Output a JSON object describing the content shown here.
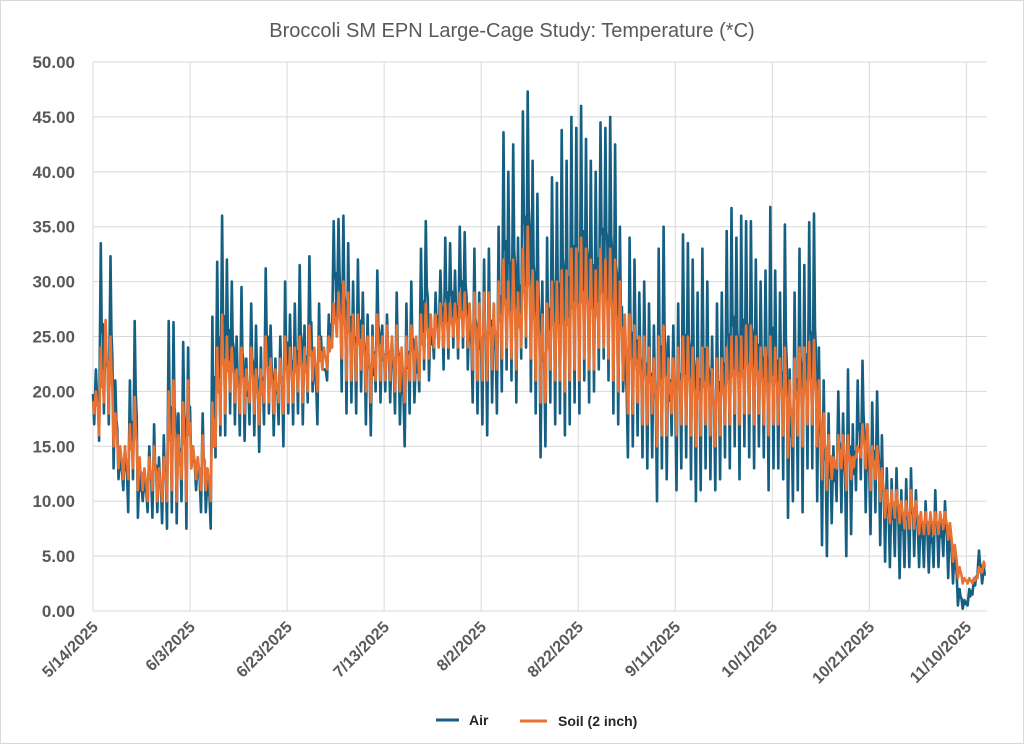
{
  "chart_data": {
    "type": "line",
    "title": "Broccoli SM EPN Large-Cage Study: Temperature (*C)",
    "xlabel": "",
    "ylabel": "",
    "ylim": [
      0,
      50
    ],
    "yticks": [
      "0.00",
      "5.00",
      "10.00",
      "15.00",
      "20.00",
      "25.00",
      "30.00",
      "35.00",
      "40.00",
      "45.00",
      "50.00"
    ],
    "ytick_values": [
      0,
      5,
      10,
      15,
      20,
      25,
      30,
      35,
      40,
      45,
      50
    ],
    "xticks": [
      "5/14/2025",
      "6/3/2025",
      "6/23/2025",
      "7/13/2025",
      "8/2/2025",
      "8/22/2025",
      "9/11/2025",
      "10/1/2025",
      "10/21/2025",
      "11/10/2025"
    ],
    "xtick_days": [
      0,
      20,
      40,
      60,
      80,
      100,
      120,
      140,
      160,
      180
    ],
    "x_start_date": "5/14/2025",
    "x_range_days": [
      0,
      184
    ],
    "grid": true,
    "legend_position": "bottom",
    "note": "Values are daily max/min, one per day starting 5/14/2025",
    "series": [
      {
        "name": "Air",
        "color": "#156082",
        "daily_max": [
          22,
          33.5,
          26,
          32.3,
          21,
          14,
          15,
          21,
          26.4,
          13,
          12,
          15,
          17,
          14,
          16,
          26.4,
          26.3,
          18,
          24.5,
          24,
          15,
          14,
          18,
          12,
          26.8,
          31.8,
          36,
          32,
          30,
          25,
          29.5,
          23,
          28,
          26,
          24,
          31.2,
          26,
          23,
          25,
          30,
          27,
          28,
          31.5,
          26,
          32.3,
          23,
          28,
          22,
          27,
          35.5,
          35.7,
          36,
          33.5,
          30,
          32,
          29,
          27,
          26,
          31,
          26,
          27,
          25,
          29,
          23,
          28,
          30,
          24,
          33,
          35.5,
          27,
          29,
          31,
          34,
          33.5,
          31,
          35,
          34.5,
          28,
          33,
          29,
          32,
          33,
          28,
          35,
          43.6,
          40,
          42.5,
          34,
          45.5,
          47.3,
          41,
          38,
          30,
          34,
          39.5,
          39,
          43.8,
          41,
          45,
          44,
          46,
          43,
          41,
          40,
          44.5,
          44,
          45,
          42.5,
          35,
          24,
          34,
          32,
          29,
          30,
          28,
          26,
          33,
          35,
          25,
          26,
          28,
          34.3,
          33.5,
          32,
          29,
          33,
          30,
          25,
          28,
          29,
          34.6,
          36.7,
          34,
          36,
          35.5,
          35.5,
          32,
          30,
          31,
          36.8,
          31,
          29,
          35.2,
          22,
          29,
          33,
          31.5,
          35.4,
          36.2,
          24,
          21,
          18,
          15,
          20,
          18,
          22,
          17,
          21,
          22.8,
          17,
          19,
          20,
          16,
          13,
          12,
          13,
          11,
          12,
          13,
          11,
          9,
          10,
          8.5,
          11,
          9,
          10,
          8,
          6,
          2,
          1,
          2,
          3,
          5.5,
          4,
          4
        ],
        "daily_min": [
          17,
          15.5,
          18,
          17,
          13,
          12,
          11,
          9,
          12,
          8.5,
          10,
          9,
          8.5,
          9,
          8,
          7.5,
          9,
          8,
          10,
          7.5,
          13,
          11,
          9,
          9,
          7.5,
          14,
          16,
          16,
          18,
          17,
          16,
          15.5,
          17,
          16,
          14.5,
          17,
          18,
          16,
          17,
          15,
          18,
          17,
          18,
          17,
          19,
          20,
          17,
          22,
          21,
          24,
          25,
          20,
          18,
          19,
          18,
          20,
          17,
          16,
          20,
          19,
          20,
          19,
          18,
          17,
          15,
          18,
          19,
          20,
          22,
          21,
          23,
          24,
          22,
          23,
          24,
          23,
          24,
          22,
          19,
          18,
          17,
          16,
          19,
          18,
          20,
          22,
          21,
          19,
          23,
          24,
          20,
          18,
          14,
          15,
          19,
          17,
          18,
          16,
          17,
          19,
          18,
          21,
          19,
          20,
          22,
          23,
          21,
          18,
          17,
          20,
          14,
          15,
          16,
          14,
          13,
          14,
          10,
          13,
          12,
          16,
          11,
          13,
          14,
          12,
          10,
          11,
          13,
          12,
          11,
          12,
          14,
          13,
          15,
          12,
          15,
          14,
          13,
          15,
          14,
          11,
          13,
          13,
          12,
          8.5,
          10,
          11,
          9,
          13,
          13,
          10,
          6,
          5,
          8,
          10,
          9,
          5,
          7,
          11,
          12,
          9,
          7,
          9,
          6,
          4.5,
          4,
          5,
          3,
          4,
          4,
          5,
          4,
          4,
          3.5,
          4,
          4,
          5,
          3,
          2.5,
          0.5,
          0.2,
          0.5,
          1.5,
          3,
          2.5,
          2.5
        ]
      },
      {
        "name": "Soil (2 inch)",
        "color": "#E97132",
        "daily_max": [
          20,
          24,
          26.5,
          25,
          18,
          15,
          15,
          17,
          19.5,
          14,
          13,
          14,
          15,
          13,
          14,
          20,
          21,
          16,
          19,
          21,
          15,
          14,
          16,
          13,
          19,
          24,
          27,
          25,
          24,
          22,
          24,
          22,
          24,
          22,
          22,
          25,
          23,
          22,
          23,
          25,
          24,
          24,
          25,
          24,
          26,
          24,
          25,
          24,
          25,
          28,
          29,
          30,
          29,
          27,
          27,
          26,
          25,
          25,
          27,
          25,
          26,
          25,
          26,
          24,
          25,
          26,
          25,
          27,
          28,
          27,
          27,
          28,
          28,
          28,
          28,
          29,
          29,
          28,
          29,
          28,
          29,
          29,
          28,
          30,
          32,
          30,
          32,
          29,
          33,
          35,
          31,
          30,
          27,
          28,
          30,
          30,
          31,
          31,
          33,
          33,
          34,
          33,
          32,
          31,
          33,
          32,
          33,
          32,
          30,
          27,
          27,
          26,
          25,
          25,
          24,
          23,
          25,
          26,
          23,
          23,
          24,
          25,
          25,
          24,
          23,
          24,
          24,
          22,
          23,
          23,
          24,
          25,
          25,
          25,
          26,
          26,
          25,
          24,
          24,
          25,
          24,
          23,
          24,
          21,
          23,
          24,
          24,
          24.5,
          24.7,
          21,
          18,
          16,
          14,
          16,
          16,
          16,
          14,
          15,
          17,
          17,
          15,
          15,
          13,
          11,
          11,
          11,
          10,
          10,
          11,
          10,
          9,
          9,
          9,
          9,
          9,
          9,
          8,
          6,
          4,
          3,
          3,
          3,
          4,
          4.5,
          4.5
        ],
        "daily_min": [
          18,
          16,
          19,
          18,
          15,
          13,
          12,
          12,
          13,
          11,
          11,
          10,
          11,
          10,
          10,
          10,
          11,
          10,
          12,
          10,
          13,
          12,
          11,
          11,
          10,
          15,
          17,
          18,
          20,
          19,
          18,
          18,
          19,
          18,
          17,
          19,
          19,
          18,
          19,
          18,
          19,
          19,
          20,
          19,
          20,
          21,
          20,
          22,
          22,
          24,
          25,
          23,
          21,
          21,
          21,
          22,
          20,
          19,
          21,
          21,
          21,
          21,
          20,
          20,
          19,
          21,
          21,
          21,
          23,
          23,
          24,
          24,
          24,
          24,
          25,
          24,
          25,
          24,
          22,
          21,
          21,
          21,
          22,
          22,
          23,
          24,
          23,
          22,
          24,
          25,
          23,
          21,
          19,
          19,
          22,
          21,
          21,
          20,
          21,
          22,
          21,
          23,
          22,
          22,
          24,
          24,
          23,
          21,
          20,
          21,
          18,
          18,
          19,
          17,
          17,
          18,
          15,
          16,
          16,
          18,
          16,
          17,
          17,
          16,
          15,
          16,
          17,
          16,
          15,
          16,
          17,
          17,
          18,
          17,
          18,
          18,
          17,
          18,
          17,
          16,
          17,
          17,
          16,
          14,
          15,
          16,
          15,
          17,
          17,
          15,
          12,
          11,
          12,
          13,
          13,
          11,
          12,
          14,
          14,
          13,
          11,
          12,
          10,
          8.5,
          8,
          8.5,
          8,
          7.5,
          7.5,
          7.5,
          7,
          7,
          7,
          7,
          7,
          7.5,
          6.5,
          4.5,
          3,
          2.5,
          2.5,
          2.5,
          3,
          3.5,
          3.5
        ]
      }
    ]
  }
}
